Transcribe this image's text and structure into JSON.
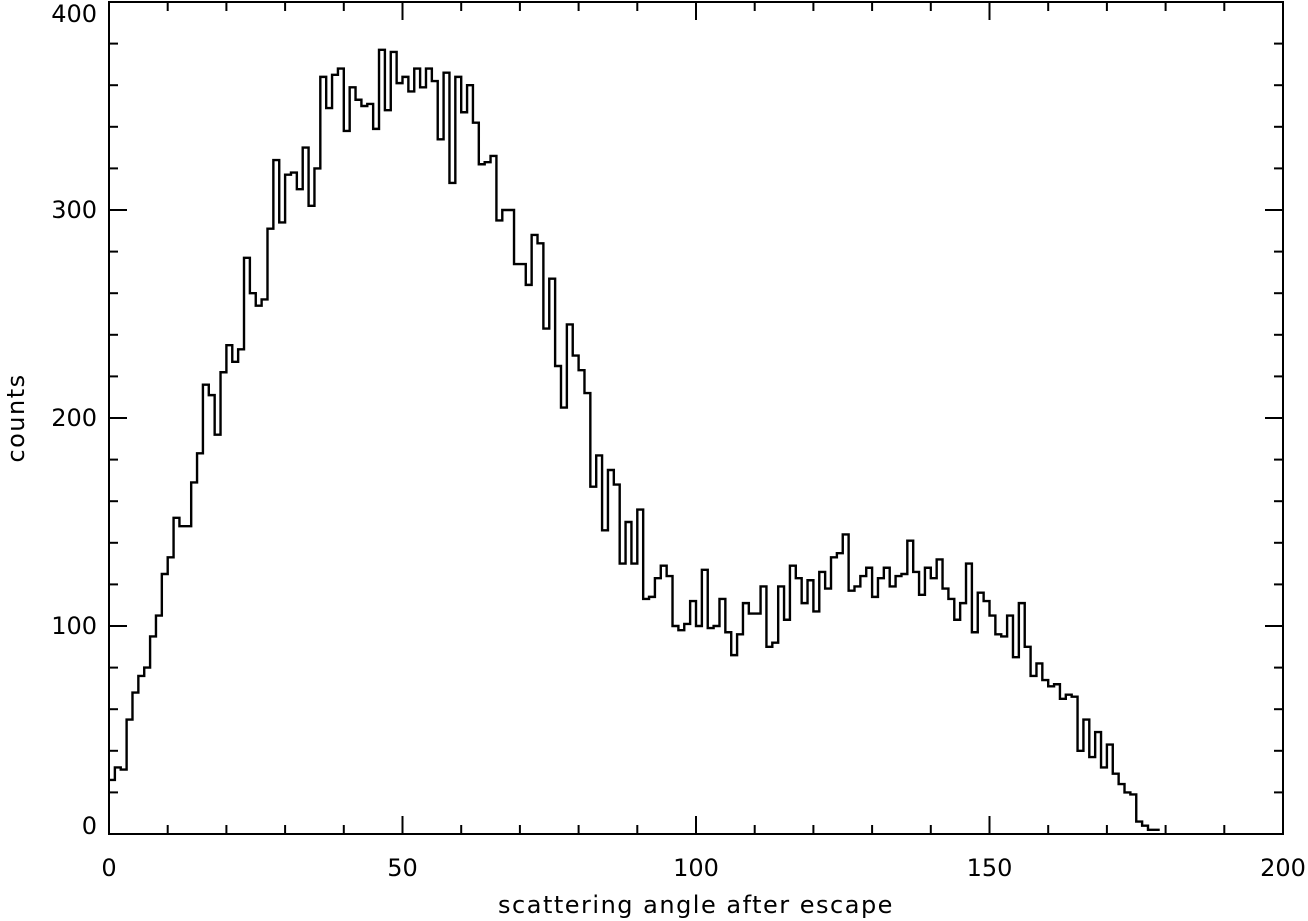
{
  "chart_data": {
    "type": "histogram",
    "title": "",
    "xlabel": "scattering angle after escape",
    "ylabel": "counts",
    "xlim": [
      0,
      200
    ],
    "ylim": [
      0,
      400
    ],
    "x_ticks": [
      0,
      50,
      100,
      150,
      200
    ],
    "y_ticks": [
      0,
      100,
      200,
      300,
      400
    ],
    "grid": false,
    "bin_width": 1,
    "bin_start": 0,
    "counts": [
      26,
      32,
      31,
      55,
      68,
      76,
      80,
      95,
      105,
      125,
      133,
      152,
      148,
      148,
      169,
      183,
      216,
      211,
      192,
      222,
      235,
      227,
      233,
      277,
      260,
      254,
      257,
      291,
      324,
      294,
      317,
      318,
      310,
      330,
      302,
      320,
      364,
      349,
      365,
      368,
      338,
      359,
      353,
      350,
      351,
      339,
      377,
      348,
      376,
      361,
      364,
      357,
      368,
      359,
      368,
      362,
      334,
      366,
      313,
      364,
      347,
      360,
      342,
      322,
      323,
      326,
      295,
      300,
      300,
      274,
      274,
      264,
      288,
      284,
      243,
      267,
      225,
      205,
      245,
      230,
      223,
      212,
      167,
      182,
      146,
      175,
      168,
      130,
      150,
      130,
      156,
      113,
      114,
      123,
      129,
      124,
      100,
      98,
      101,
      112,
      100,
      127,
      99,
      100,
      113,
      97,
      86,
      96,
      111,
      106,
      106,
      119,
      90,
      92,
      119,
      103,
      129,
      123,
      111,
      122,
      107,
      126,
      118,
      133,
      135,
      144,
      117,
      119,
      124,
      128,
      114,
      123,
      128,
      119,
      124,
      125,
      141,
      126,
      115,
      128,
      123,
      132,
      118,
      113,
      103,
      111,
      130,
      97,
      116,
      112,
      105,
      96,
      95,
      105,
      85,
      111,
      90,
      76,
      82,
      74,
      71,
      72,
      65,
      67,
      66,
      40,
      55,
      37,
      49,
      32,
      43,
      29,
      24,
      20,
      19,
      6,
      4,
      2,
      2
    ]
  }
}
